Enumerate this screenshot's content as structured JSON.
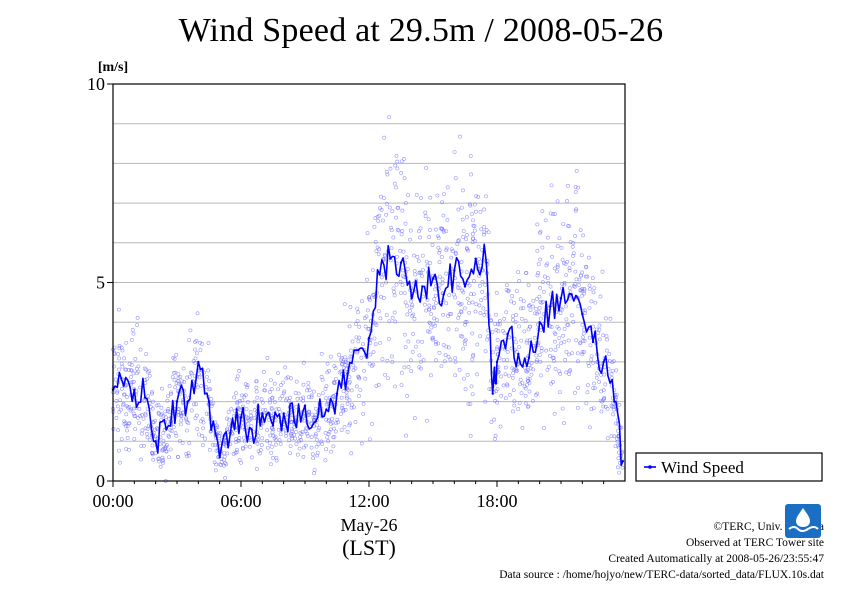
{
  "title": "Wind Speed at 29.5m / 2008-05-26",
  "chart_data": {
    "type": "line",
    "title": "Wind Speed at 29.5m / 2008-05-26",
    "ylabel": "[m/s]",
    "ylim": [
      0,
      10
    ],
    "yticks": [
      "0",
      "5",
      "10"
    ],
    "xlim": [
      0,
      24
    ],
    "xticks": [
      "00:00",
      "06:00",
      "12:00",
      "18:00"
    ],
    "xlabel_date": "May-26",
    "xlabel_tz": "(LST)",
    "grid": true,
    "legend": "right",
    "series": [
      {
        "name": "Wind Speed",
        "color": "#0000ff",
        "x": [
          0,
          0.5,
          1.0,
          1.5,
          2.0,
          2.5,
          3.0,
          3.5,
          4.0,
          4.5,
          5.0,
          5.5,
          6.0,
          6.5,
          7.0,
          7.5,
          8.0,
          8.5,
          9.0,
          9.5,
          10.0,
          10.5,
          11.0,
          11.5,
          12.0,
          12.5,
          13.0,
          13.5,
          14.0,
          14.5,
          15.0,
          15.5,
          16.0,
          16.5,
          17.0,
          17.5,
          17.8,
          18.0,
          18.5,
          19.0,
          19.5,
          20.0,
          20.5,
          21.0,
          21.5,
          22.0,
          22.5,
          23.0,
          23.5,
          23.9
        ],
        "values": [
          2.3,
          2.4,
          2.3,
          2.1,
          1.0,
          1.3,
          2.0,
          2.0,
          3.0,
          2.0,
          0.6,
          1.2,
          1.6,
          1.3,
          1.7,
          1.4,
          1.7,
          1.5,
          1.9,
          1.5,
          1.8,
          2.2,
          2.7,
          3.3,
          3.6,
          5.2,
          5.6,
          5.5,
          4.6,
          4.9,
          5.1,
          4.7,
          5.3,
          4.9,
          5.6,
          5.5,
          2.2,
          3.0,
          3.7,
          3.2,
          3.1,
          4.0,
          4.4,
          4.6,
          4.7,
          4.2,
          3.5,
          3.0,
          2.0,
          0.5
        ]
      }
    ]
  },
  "credits": [
    "©TERC, Univ. Tsukuba",
    "Observed at TERC Tower site",
    "Created Automatically at 2008-05-26/23:55:47",
    "Data source : /home/hojyo/new/TERC-data/sorted_data/FLUX.10s.dat"
  ],
  "logo_text": "TERC"
}
